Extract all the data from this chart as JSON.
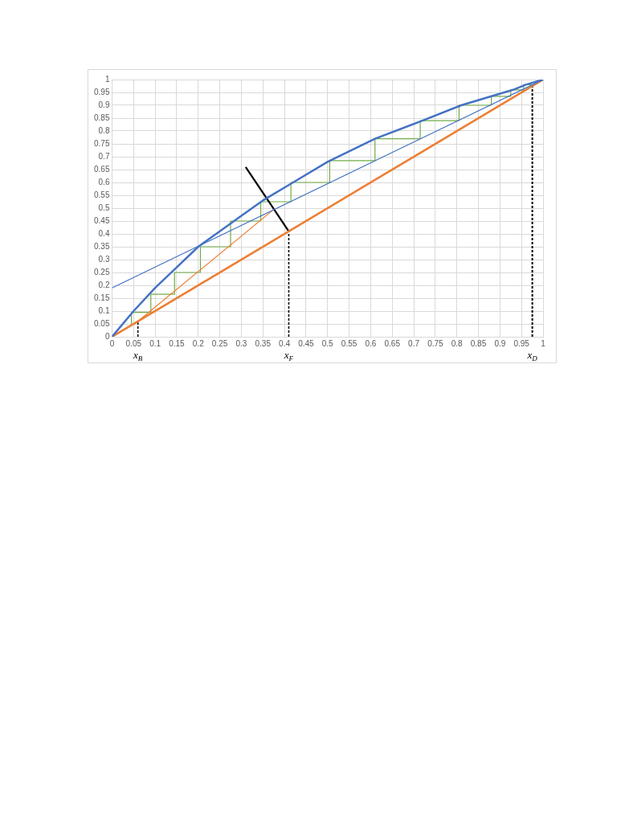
{
  "chart_data": {
    "type": "line",
    "xlim": [
      0,
      1
    ],
    "ylim": [
      0,
      1
    ],
    "xticks": [
      0,
      0.05,
      0.1,
      0.15,
      0.2,
      0.25,
      0.3,
      0.35,
      0.4,
      0.45,
      0.5,
      0.55,
      0.6,
      0.65,
      0.7,
      0.75,
      0.8,
      0.85,
      0.9,
      0.95,
      1
    ],
    "yticks": [
      0,
      0.05,
      0.1,
      0.15,
      0.2,
      0.25,
      0.3,
      0.35,
      0.4,
      0.45,
      0.5,
      0.55,
      0.6,
      0.65,
      0.7,
      0.75,
      0.8,
      0.85,
      0.9,
      0.95,
      1
    ],
    "grid": true,
    "legend": false,
    "marker": "none",
    "series": [
      {
        "type": "line",
        "color": "#4472c4",
        "x": [
          0,
          0.05,
          0.1,
          0.15,
          0.2,
          0.25,
          0.3,
          0.35,
          0.42,
          0.5,
          0.61,
          0.72,
          0.81,
          0.88,
          0.93,
          0.96,
          1
        ],
        "values": [
          0,
          0.1,
          0.19,
          0.27,
          0.35,
          0.41,
          0.47,
          0.53,
          0.6,
          0.68,
          0.77,
          0.84,
          0.9,
          0.935,
          0.96,
          0.98,
          1
        ]
      },
      {
        "type": "line",
        "color": "#4472c4",
        "x": [
          0,
          1
        ],
        "values": [
          0.19,
          1
        ]
      },
      {
        "type": "line",
        "color": "#ed7d31",
        "x": [
          0,
          1
        ],
        "values": [
          0,
          1
        ]
      },
      {
        "type": "line",
        "color": "#ed7d31",
        "x": [
          0.06,
          0.375
        ],
        "values": [
          0.06,
          0.495
        ]
      },
      {
        "type": "line",
        "color": "#000000",
        "x": [
          0.31,
          0.41
        ],
        "values": [
          0.66,
          0.41
        ]
      },
      {
        "type": "line",
        "color": "#70ad47",
        "x": [
          0.045,
          0.045,
          0.09,
          0.09,
          0.145,
          0.145,
          0.205,
          0.205,
          0.275,
          0.275,
          0.345,
          0.345,
          0.415,
          0.415,
          0.505,
          0.505,
          0.61,
          0.61,
          0.715,
          0.715,
          0.805,
          0.805,
          0.88,
          0.88,
          0.925,
          0.925,
          0.955,
          0.955,
          0.975
        ],
        "values": [
          0.05,
          0.095,
          0.095,
          0.165,
          0.165,
          0.25,
          0.25,
          0.35,
          0.35,
          0.45,
          0.45,
          0.525,
          0.525,
          0.6,
          0.6,
          0.685,
          0.685,
          0.77,
          0.77,
          0.84,
          0.84,
          0.9,
          0.9,
          0.935,
          0.935,
          0.96,
          0.96,
          0.98,
          0.98
        ]
      },
      {
        "type": "line",
        "color": "#000000",
        "line_style": "dashed",
        "x": [
          0.06,
          0.06
        ],
        "values": [
          0,
          0.06
        ]
      },
      {
        "type": "line",
        "color": "#000000",
        "line_style": "dashed",
        "x": [
          0.41,
          0.41
        ],
        "values": [
          0,
          0.41
        ]
      },
      {
        "type": "line",
        "color": "#000000",
        "line_style": "dashed",
        "x": [
          0.975,
          0.975
        ],
        "values": [
          0,
          0.975
        ]
      }
    ],
    "annotations": [
      {
        "text": "x$_{B}$",
        "x": 0.06,
        "y": 0
      },
      {
        "text": "x$_{F}$",
        "x": 0.41,
        "y": 0
      },
      {
        "text": "x$_{D}$",
        "x": 0.975,
        "y": 0
      }
    ]
  }
}
